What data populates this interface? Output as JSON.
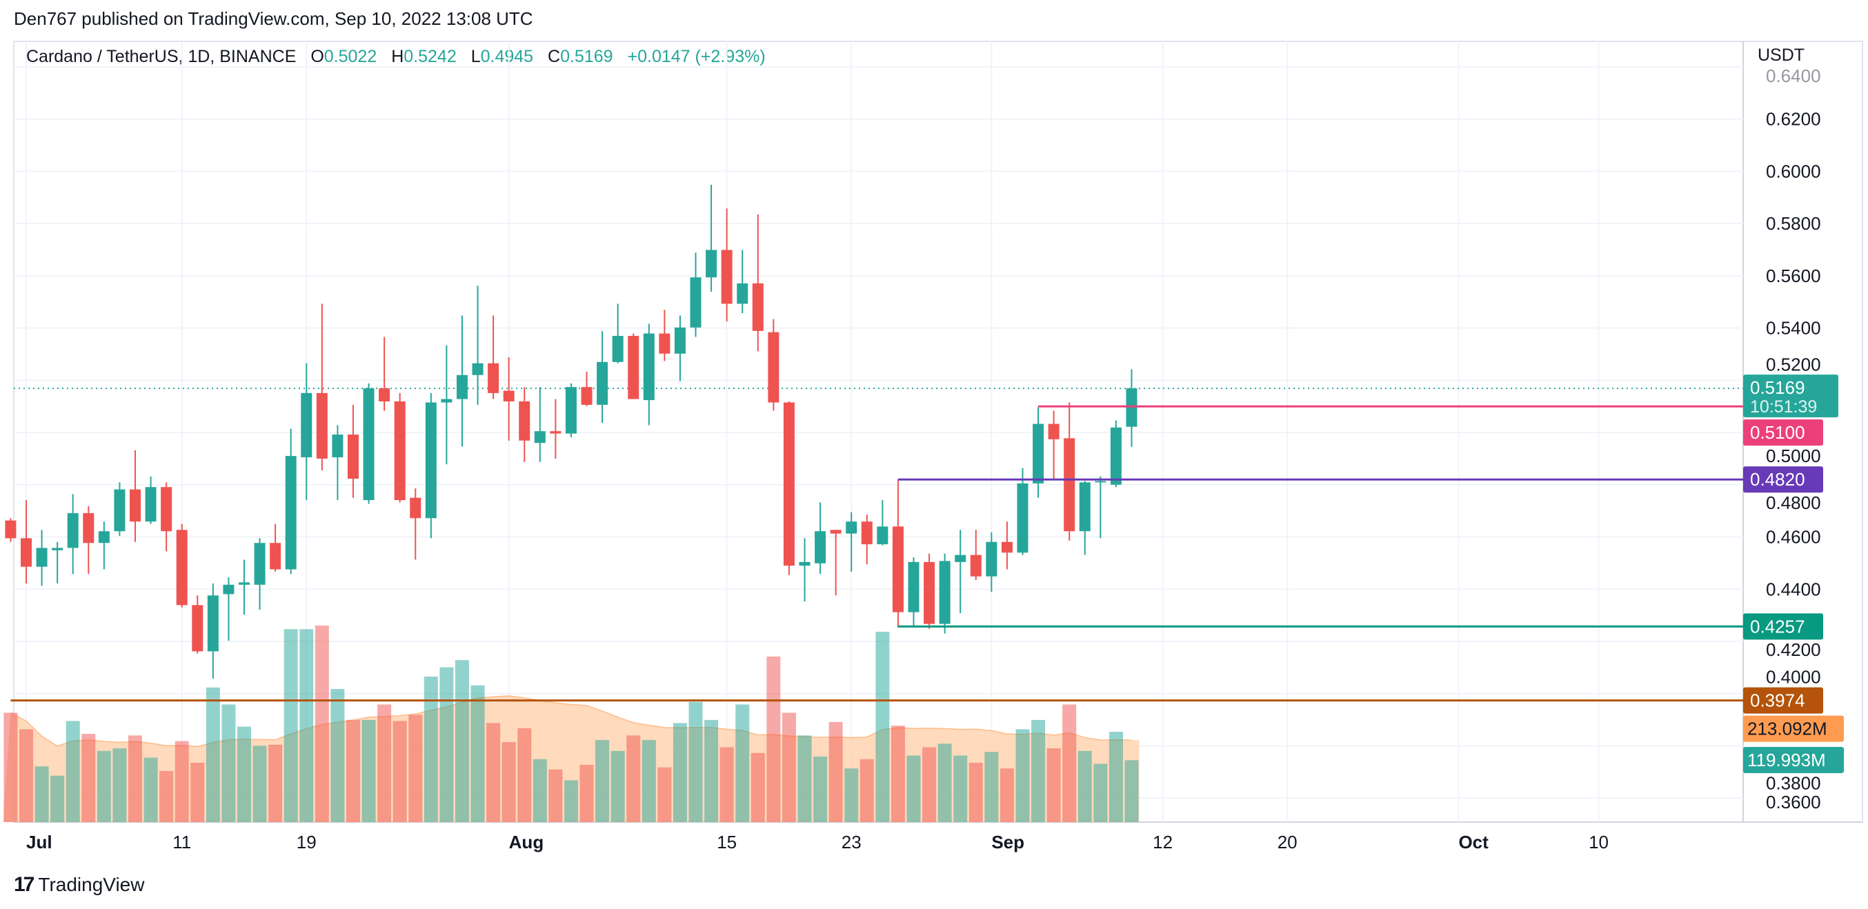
{
  "publisher_line": "Den767 published on TradingView.com, Sep 10, 2022 13:08 UTC",
  "legend": {
    "symbol": "Cardano / TetherUS, 1D, BINANCE",
    "o_label": "O",
    "o": "0.5022",
    "h_label": "H",
    "h": "0.5242",
    "l_label": "L",
    "l": "0.4945",
    "c_label": "C",
    "c": "0.5169",
    "change": "+0.0147 (+2.93%)"
  },
  "footer": {
    "brand": "TradingView",
    "logo_text": "17"
  },
  "colors": {
    "up": "#26a69a",
    "down": "#ef5350",
    "pink": "#ec407a",
    "purple": "#673ab7",
    "green_line": "#089981",
    "brown": "#b45309",
    "vol_ma": "#ff9b51",
    "vol_ma_fill": "#ffd1ad"
  },
  "chart_data": {
    "type": "candlestick",
    "currency": "USDT",
    "ylim": [
      0.35,
      0.645
    ],
    "y_ticks": [
      "0.6400",
      "0.6200",
      "0.6000",
      "0.5800",
      "0.5600",
      "0.5400",
      "0.5200",
      "0.5000",
      "0.4800",
      "0.4600",
      "0.4400",
      "0.4200",
      "0.4000",
      "0.3800",
      "0.3600"
    ],
    "x_ticks": [
      {
        "label": "Jul",
        "date": "2022-07-01"
      },
      {
        "label": "11",
        "date": "2022-07-11"
      },
      {
        "label": "19",
        "date": "2022-07-19"
      },
      {
        "label": "Aug",
        "date": "2022-08-01"
      },
      {
        "label": "15",
        "date": "2022-08-15"
      },
      {
        "label": "23",
        "date": "2022-08-23"
      },
      {
        "label": "Sep",
        "date": "2022-09-01"
      },
      {
        "label": "12",
        "date": "2022-09-12"
      },
      {
        "label": "20",
        "date": "2022-09-20"
      },
      {
        "label": "Oct",
        "date": "2022-10-01"
      },
      {
        "label": "10",
        "date": "2022-10-10"
      }
    ],
    "xlim": [
      "2022-06-30",
      "2022-10-20"
    ],
    "grid": true,
    "candles_columns": [
      "date",
      "open",
      "high",
      "low",
      "close",
      "volume_M"
    ],
    "candles": [
      [
        "2022-06-30",
        0.4663,
        0.4672,
        0.4581,
        0.4595,
        212
      ],
      [
        "2022-07-01",
        0.4595,
        0.4741,
        0.4422,
        0.4486,
        180
      ],
      [
        "2022-07-02",
        0.4486,
        0.4627,
        0.4413,
        0.4558,
        108
      ],
      [
        "2022-07-03",
        0.4549,
        0.4581,
        0.4422,
        0.4558,
        90
      ],
      [
        "2022-07-04",
        0.4558,
        0.4764,
        0.4458,
        0.4691,
        196
      ],
      [
        "2022-07-05",
        0.4691,
        0.4718,
        0.4458,
        0.4577,
        171
      ],
      [
        "2022-07-06",
        0.4577,
        0.4659,
        0.4476,
        0.4622,
        138
      ],
      [
        "2022-07-07",
        0.4622,
        0.4809,
        0.4604,
        0.4782,
        143
      ],
      [
        "2022-07-08",
        0.4782,
        0.4932,
        0.4581,
        0.4659,
        168
      ],
      [
        "2022-07-09",
        0.4659,
        0.4832,
        0.465,
        0.4791,
        125
      ],
      [
        "2022-07-10",
        0.4791,
        0.4809,
        0.4545,
        0.4622,
        99
      ],
      [
        "2022-07-11",
        0.4627,
        0.465,
        0.433,
        0.4339,
        157
      ],
      [
        "2022-07-12",
        0.4339,
        0.4376,
        0.4153,
        0.4162,
        115
      ],
      [
        "2022-07-13",
        0.4162,
        0.4422,
        0.4057,
        0.4376,
        261
      ],
      [
        "2022-07-14",
        0.4381,
        0.4445,
        0.4203,
        0.4417,
        228
      ],
      [
        "2022-07-15",
        0.4417,
        0.4513,
        0.4303,
        0.4426,
        185
      ],
      [
        "2022-07-16",
        0.4417,
        0.4595,
        0.4321,
        0.4577,
        148
      ],
      [
        "2022-07-17",
        0.4577,
        0.465,
        0.4467,
        0.4476,
        150
      ],
      [
        "2022-07-18",
        0.4476,
        0.5014,
        0.4458,
        0.491,
        374
      ],
      [
        "2022-07-19",
        0.4905,
        0.5265,
        0.4741,
        0.5151,
        374
      ],
      [
        "2022-07-20",
        0.5151,
        0.5493,
        0.4855,
        0.49,
        381
      ],
      [
        "2022-07-21",
        0.4905,
        0.5028,
        0.4741,
        0.4992,
        258
      ],
      [
        "2022-07-22",
        0.4992,
        0.5106,
        0.475,
        0.4823,
        198
      ],
      [
        "2022-07-23",
        0.4741,
        0.5188,
        0.4727,
        0.5169,
        198
      ],
      [
        "2022-07-24",
        0.5169,
        0.5366,
        0.5083,
        0.5119,
        228
      ],
      [
        "2022-07-25",
        0.5119,
        0.5151,
        0.4732,
        0.4741,
        196
      ],
      [
        "2022-07-26",
        0.475,
        0.4786,
        0.4513,
        0.4672,
        208
      ],
      [
        "2022-07-27",
        0.4672,
        0.5151,
        0.4595,
        0.5115,
        282
      ],
      [
        "2022-07-28",
        0.5115,
        0.5334,
        0.4878,
        0.5128,
        300
      ],
      [
        "2022-07-29",
        0.5128,
        0.5448,
        0.4946,
        0.522,
        314
      ],
      [
        "2022-07-30",
        0.522,
        0.5562,
        0.5106,
        0.5265,
        265
      ],
      [
        "2022-07-31",
        0.5265,
        0.5448,
        0.5128,
        0.5151,
        192
      ],
      [
        "2022-08-01",
        0.516,
        0.5288,
        0.4969,
        0.5119,
        155
      ],
      [
        "2022-08-02",
        0.5119,
        0.5174,
        0.4887,
        0.4969,
        182
      ],
      [
        "2022-08-03",
        0.496,
        0.5174,
        0.4887,
        0.5005,
        122
      ],
      [
        "2022-08-04",
        0.5005,
        0.5128,
        0.49,
        0.4996,
        102
      ],
      [
        "2022-08-05",
        0.4996,
        0.5188,
        0.4982,
        0.5174,
        81
      ],
      [
        "2022-08-06",
        0.5174,
        0.5233,
        0.5101,
        0.5106,
        111
      ],
      [
        "2022-08-07",
        0.5106,
        0.5388,
        0.5037,
        0.527,
        159
      ],
      [
        "2022-08-08",
        0.527,
        0.5493,
        0.5265,
        0.537,
        138
      ],
      [
        "2022-08-09",
        0.537,
        0.5379,
        0.5128,
        0.5128,
        168
      ],
      [
        "2022-08-10",
        0.5124,
        0.5416,
        0.5028,
        0.5379,
        159
      ],
      [
        "2022-08-11",
        0.5379,
        0.547,
        0.5274,
        0.5302,
        106
      ],
      [
        "2022-08-12",
        0.5302,
        0.5448,
        0.5197,
        0.5402,
        192
      ],
      [
        "2022-08-13",
        0.5402,
        0.5689,
        0.5366,
        0.5594,
        233
      ],
      [
        "2022-08-14",
        0.5594,
        0.5949,
        0.5539,
        0.5699,
        198
      ],
      [
        "2022-08-15",
        0.5699,
        0.5858,
        0.5425,
        0.5493,
        145
      ],
      [
        "2022-08-16",
        0.5493,
        0.5699,
        0.5457,
        0.5571,
        228
      ],
      [
        "2022-08-17",
        0.5571,
        0.5835,
        0.5311,
        0.5389,
        134
      ],
      [
        "2022-08-18",
        0.5384,
        0.5434,
        0.5083,
        0.5115,
        321
      ],
      [
        "2022-08-19",
        0.5115,
        0.5119,
        0.4454,
        0.449,
        212
      ],
      [
        "2022-08-20",
        0.449,
        0.4595,
        0.4353,
        0.4504,
        168
      ],
      [
        "2022-08-21",
        0.4499,
        0.4732,
        0.4458,
        0.4622,
        127
      ],
      [
        "2022-08-22",
        0.4627,
        0.4627,
        0.4376,
        0.4613,
        194
      ],
      [
        "2022-08-23",
        0.4613,
        0.4695,
        0.4467,
        0.4659,
        104
      ],
      [
        "2022-08-24",
        0.4659,
        0.4686,
        0.4495,
        0.4572,
        122
      ],
      [
        "2022-08-25",
        0.4572,
        0.4741,
        0.4568,
        0.464,
        369
      ],
      [
        "2022-08-26",
        0.464,
        0.482,
        0.4253,
        0.4312,
        187
      ],
      [
        "2022-08-27",
        0.4312,
        0.4522,
        0.4257,
        0.4504,
        129
      ],
      [
        "2022-08-28",
        0.4504,
        0.4536,
        0.4248,
        0.4267,
        145
      ],
      [
        "2022-08-29",
        0.4267,
        0.4536,
        0.423,
        0.4508,
        152
      ],
      [
        "2022-08-30",
        0.4504,
        0.4627,
        0.4308,
        0.4531,
        129
      ],
      [
        "2022-08-31",
        0.4531,
        0.4627,
        0.4435,
        0.4449,
        115
      ],
      [
        "2022-09-01",
        0.4449,
        0.4618,
        0.439,
        0.4581,
        136
      ],
      [
        "2022-09-02",
        0.4581,
        0.4659,
        0.4476,
        0.454,
        104
      ],
      [
        "2022-09-03",
        0.454,
        0.4864,
        0.4531,
        0.4805,
        180
      ],
      [
        "2022-09-04",
        0.4805,
        0.5097,
        0.475,
        0.5033,
        198
      ],
      [
        "2022-09-05",
        0.5033,
        0.5083,
        0.4818,
        0.4974,
        143
      ],
      [
        "2022-09-06",
        0.4978,
        0.5115,
        0.4586,
        0.4622,
        228
      ],
      [
        "2022-09-07",
        0.4622,
        0.4814,
        0.4531,
        0.4809,
        138
      ],
      [
        "2022-09-08",
        0.4809,
        0.4832,
        0.4595,
        0.4814,
        113
      ],
      [
        "2022-09-09",
        0.48,
        0.5046,
        0.4791,
        0.5019,
        175
      ],
      [
        "2022-09-10",
        0.5022,
        0.5242,
        0.4945,
        0.5169,
        119.993
      ]
    ],
    "last_price": {
      "value": "0.5169",
      "countdown": "10:51:39"
    },
    "horizontal_lines": [
      {
        "value": 0.51,
        "label": "0.5100",
        "from": "2022-09-04",
        "color": "#ec407a"
      },
      {
        "value": 0.482,
        "label": "0.4820",
        "from": "2022-08-26",
        "color": "#673ab7"
      },
      {
        "value": 0.4257,
        "label": "0.4257",
        "from": "2022-08-26",
        "color": "#089981"
      },
      {
        "value": 0.3974,
        "label": "0.3974",
        "from": "2022-06-30",
        "color": "#b45309"
      }
    ],
    "volume": {
      "ma_label": "213.092M",
      "last_label": "119.993M",
      "ma_value_M": 213.092
    }
  }
}
